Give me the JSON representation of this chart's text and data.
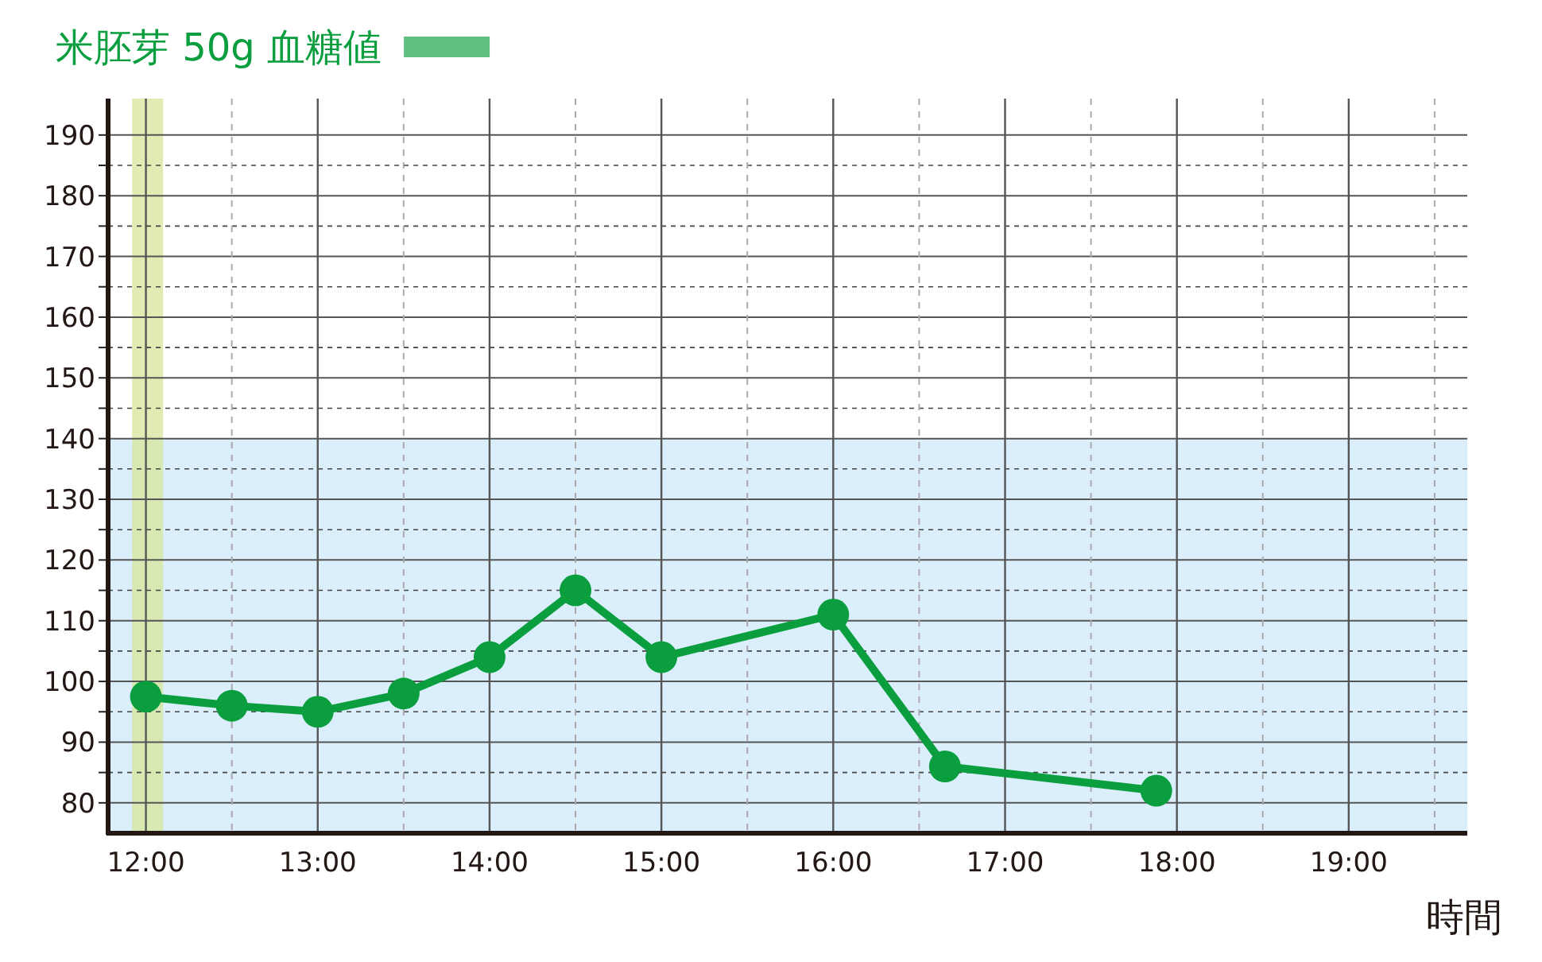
{
  "chart_data": {
    "type": "line",
    "xlabel": "時間",
    "x": [
      12,
      12.5,
      13,
      13.5,
      14,
      14.5,
      15,
      16,
      16.65,
      17.88
    ],
    "series": [
      {
        "name": "米胚芽 50g 血糖値",
        "color": "#0a9e3f",
        "values": [
          97.5,
          96,
          95,
          98,
          104,
          115,
          104,
          111,
          86,
          82
        ]
      }
    ],
    "xlim": [
      11.78,
      19.69
    ],
    "ylim": [
      75,
      196
    ],
    "xticks": [
      {
        "value": 12,
        "label": "12:00"
      },
      {
        "value": 12.5,
        "label": null
      },
      {
        "value": 13,
        "label": "13:00"
      },
      {
        "value": 13.5,
        "label": null
      },
      {
        "value": 14,
        "label": "14:00"
      },
      {
        "value": 14.5,
        "label": null
      },
      {
        "value": 15,
        "label": "15:00"
      },
      {
        "value": 15.5,
        "label": null
      },
      {
        "value": 16,
        "label": "16:00"
      },
      {
        "value": 16.5,
        "label": null
      },
      {
        "value": 17,
        "label": "17:00"
      },
      {
        "value": 17.5,
        "label": null
      },
      {
        "value": 18,
        "label": "18:00"
      },
      {
        "value": 18.5,
        "label": null
      },
      {
        "value": 19,
        "label": "19:00"
      },
      {
        "value": 19.5,
        "label": null
      }
    ],
    "yticks": [
      80,
      {
        "value": 85,
        "label": null
      },
      90,
      {
        "value": 95,
        "label": null
      },
      100,
      {
        "value": 105,
        "label": null
      },
      110,
      {
        "value": 115,
        "label": null
      },
      120,
      {
        "value": 125,
        "label": null
      },
      130,
      {
        "value": 135,
        "label": null
      },
      140,
      {
        "value": 145,
        "label": null
      },
      150,
      {
        "value": 155,
        "label": null
      },
      160,
      {
        "value": 165,
        "label": null
      },
      170,
      {
        "value": 175,
        "label": null
      },
      180,
      {
        "value": 185,
        "label": null
      },
      190
    ],
    "bands": [
      {
        "axis": "y",
        "from": 75,
        "to": 140,
        "color": "#dbeefb"
      },
      {
        "axis": "x",
        "from": 11.92,
        "to": 12.1,
        "color": "#d6e69a"
      }
    ],
    "grid": true,
    "legend": "top left",
    "marker": "circle",
    "line_style": "solid"
  }
}
